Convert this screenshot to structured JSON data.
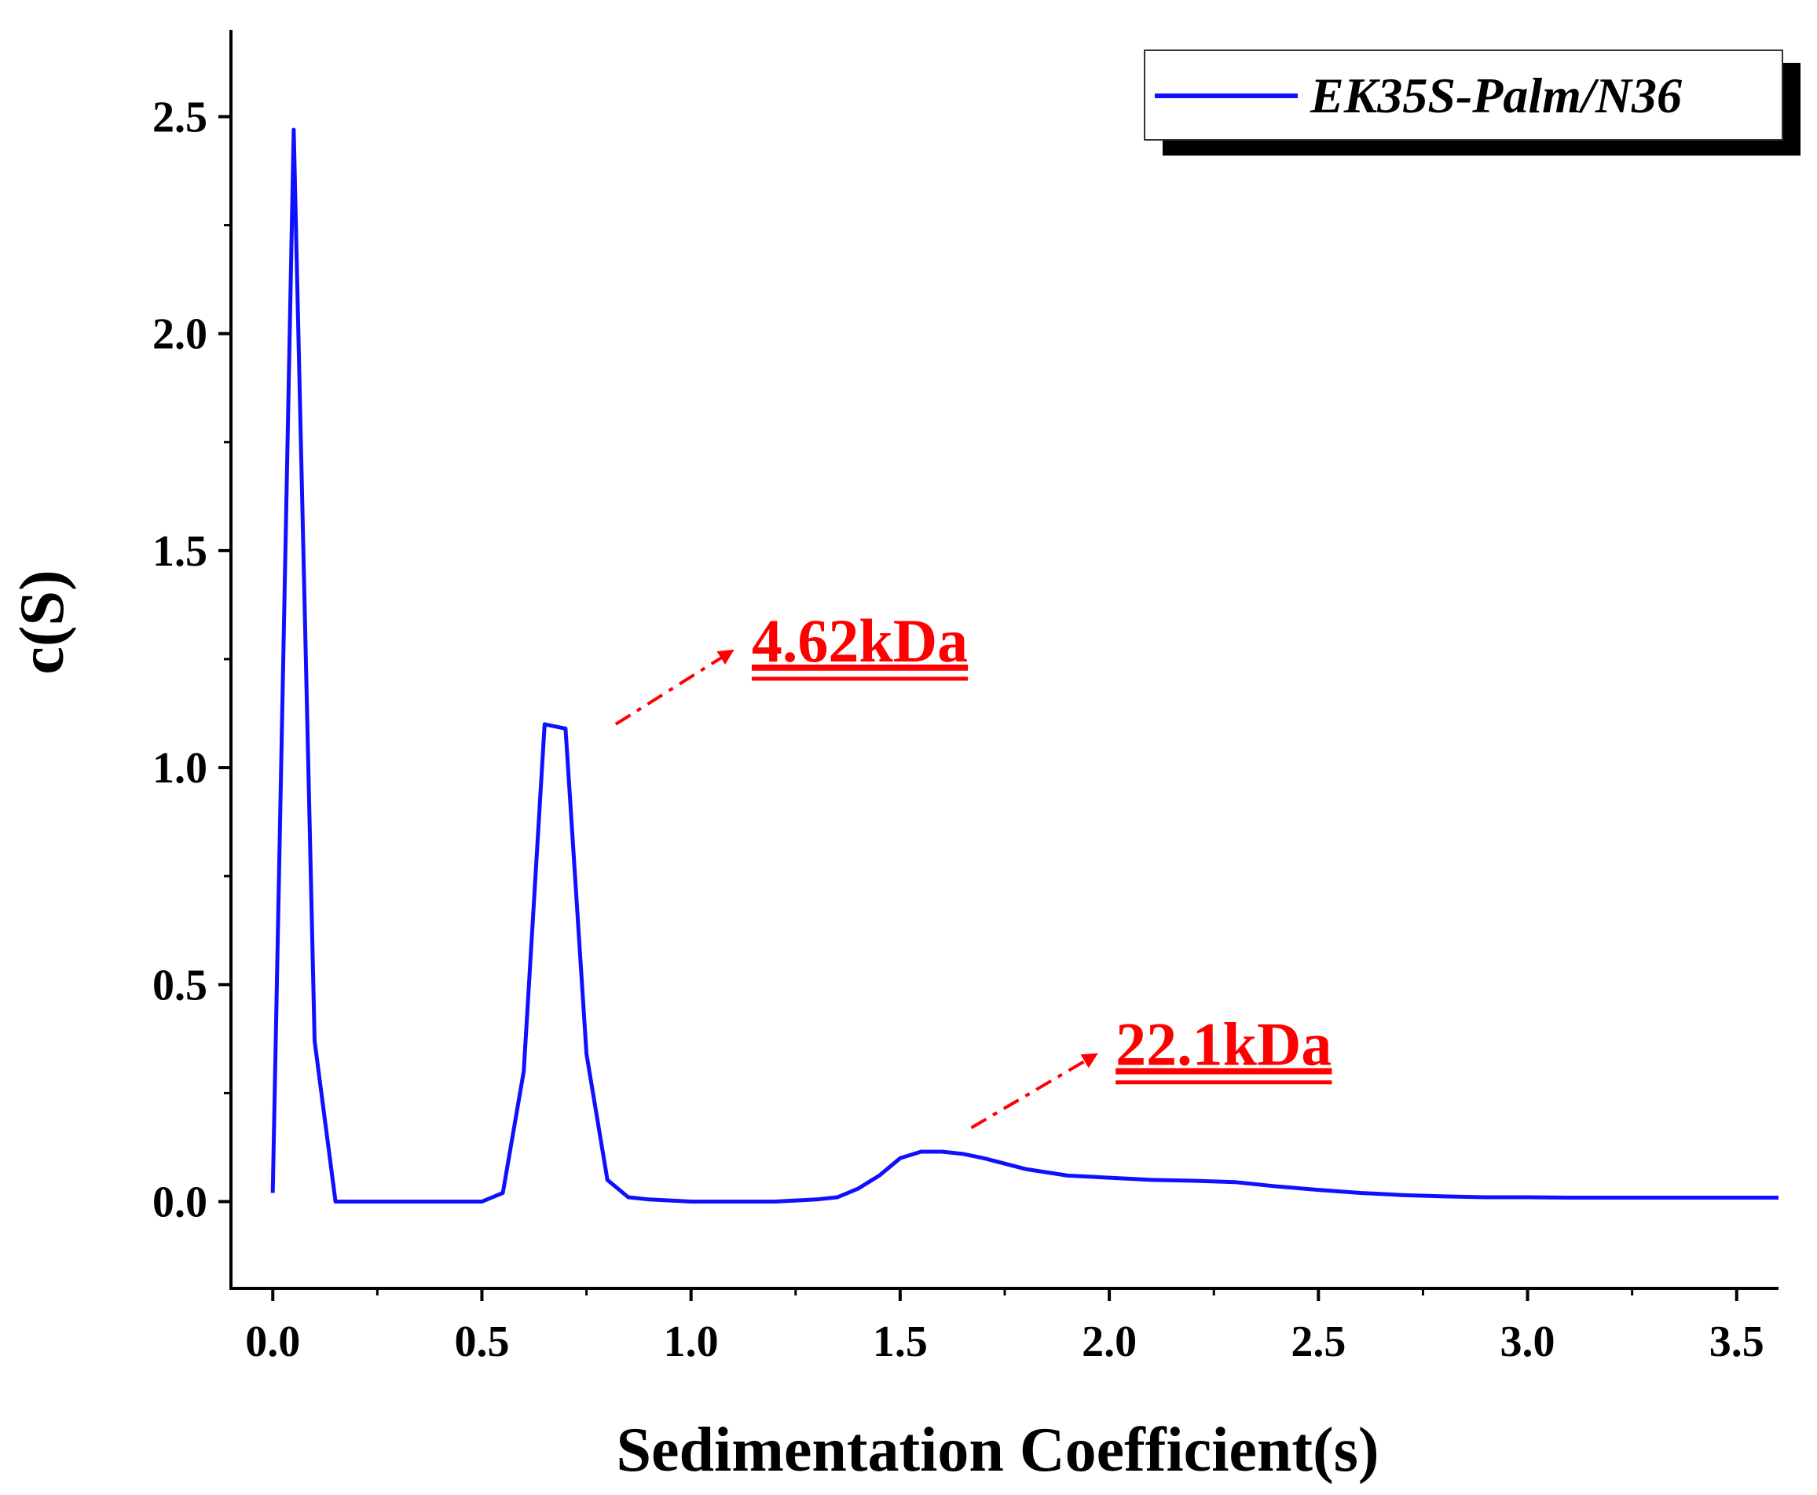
{
  "chart_data": {
    "type": "line",
    "title": "",
    "xlabel": "Sedimentation Coefficient(s)",
    "ylabel": "c(S)",
    "xlim": [
      -0.1,
      3.6
    ],
    "ylim": [
      -0.2,
      2.7
    ],
    "x_ticks": [
      0.0,
      0.5,
      1.0,
      1.5,
      2.0,
      2.5,
      3.0,
      3.5
    ],
    "x_tick_labels": [
      "0.0",
      "0.5",
      "1.0",
      "1.5",
      "2.0",
      "2.5",
      "3.0",
      "3.5"
    ],
    "y_ticks": [
      0.0,
      0.5,
      1.0,
      1.5,
      2.0,
      2.5
    ],
    "y_tick_labels": [
      "0.0",
      "0.5",
      "1.0",
      "1.5",
      "2.0",
      "2.5"
    ],
    "legend_position": "top-right",
    "series": [
      {
        "name": "EK35S-Palm/N36",
        "color": "#1010ff",
        "x": [
          0.0,
          0.05,
          0.1,
          0.15,
          0.2,
          0.3,
          0.4,
          0.5,
          0.55,
          0.6,
          0.65,
          0.7,
          0.75,
          0.8,
          0.85,
          0.9,
          1.0,
          1.1,
          1.2,
          1.3,
          1.35,
          1.4,
          1.45,
          1.5,
          1.55,
          1.6,
          1.65,
          1.7,
          1.8,
          1.9,
          2.0,
          2.1,
          2.2,
          2.3,
          2.4,
          2.5,
          2.6,
          2.7,
          2.8,
          2.9,
          3.0,
          3.1,
          3.2,
          3.3,
          3.4,
          3.5,
          3.6
        ],
        "values": [
          0.02,
          2.47,
          0.37,
          0.0,
          0.0,
          0.0,
          0.0,
          0.0,
          0.02,
          0.3,
          1.1,
          1.09,
          0.34,
          0.05,
          0.01,
          0.005,
          0.0,
          0.0,
          0.0,
          0.005,
          0.01,
          0.03,
          0.06,
          0.1,
          0.115,
          0.115,
          0.11,
          0.1,
          0.075,
          0.06,
          0.055,
          0.05,
          0.048,
          0.045,
          0.035,
          0.027,
          0.02,
          0.015,
          0.012,
          0.01,
          0.01,
          0.009,
          0.009,
          0.009,
          0.009,
          0.009,
          0.009
        ]
      }
    ],
    "annotations": [
      {
        "text": "4.62kDa",
        "color": "#ff0000",
        "arrow_from": [
          0.82,
          1.1
        ],
        "arrow_to": [
          1.1,
          1.27
        ]
      },
      {
        "text": "22.1kDa",
        "color": "#ff0000",
        "arrow_from": [
          1.67,
          0.17
        ],
        "arrow_to": [
          1.97,
          0.34
        ]
      }
    ]
  }
}
